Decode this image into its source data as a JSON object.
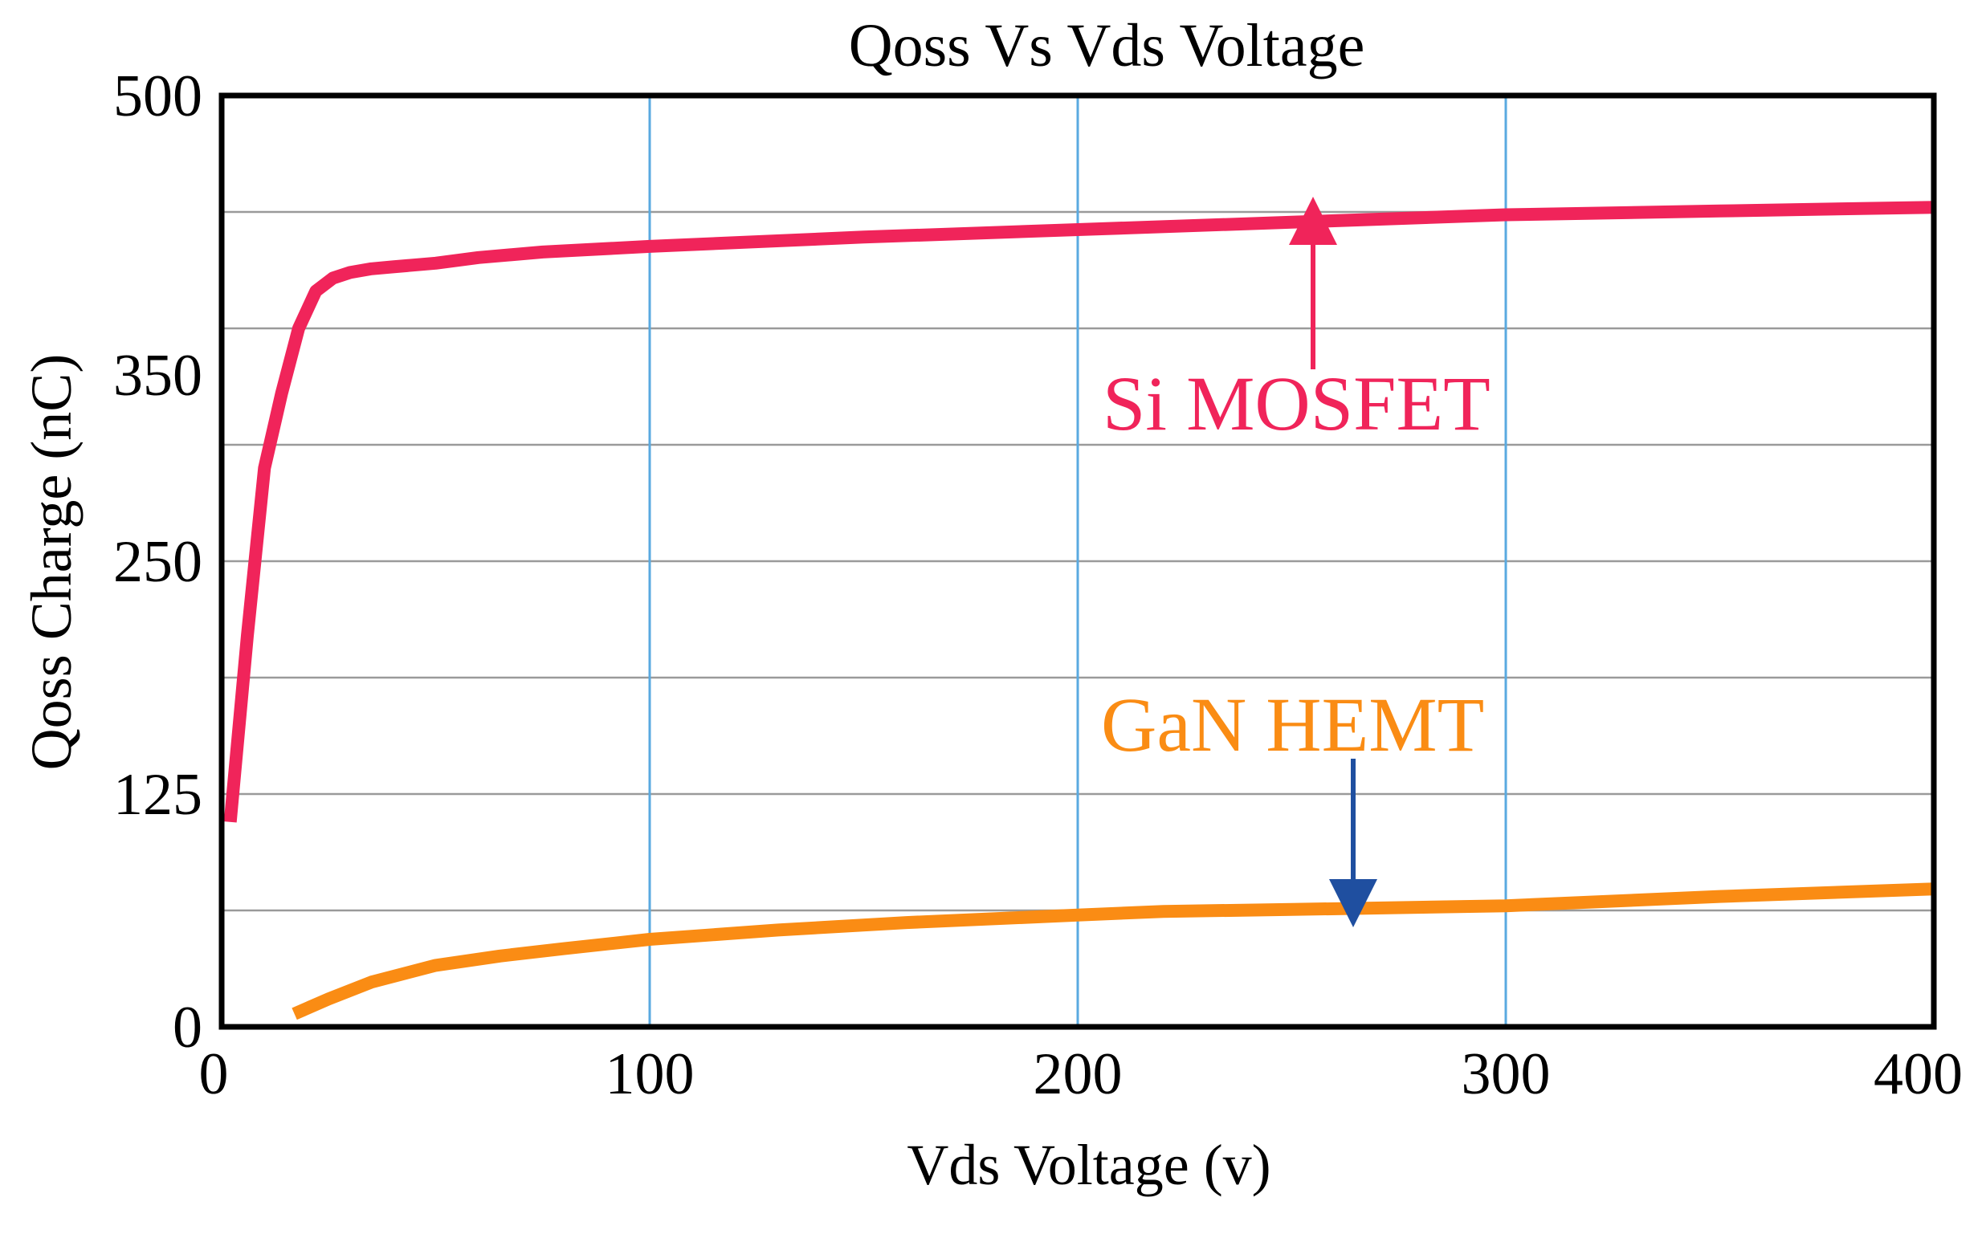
{
  "chart_data": {
    "type": "line",
    "title": "Qoss Vs Vds Voltage",
    "xlabel": "Vds Voltage (v)",
    "ylabel": "Qoss Charge (nC)",
    "xlim": [
      0,
      400
    ],
    "ylim": [
      0,
      500
    ],
    "xticks": [
      0,
      100,
      200,
      300,
      400
    ],
    "yticks": [
      0,
      125,
      250,
      350,
      500
    ],
    "grid": true,
    "series": [
      {
        "name": "Si MOSFET",
        "color": "#f0245a",
        "x": [
          2,
          6,
          10,
          14,
          18,
          22,
          26,
          30,
          35,
          40,
          50,
          60,
          75,
          100,
          150,
          200,
          250,
          300,
          350,
          400
        ],
        "y": [
          110,
          210,
          300,
          340,
          375,
          395,
          402,
          405,
          407,
          408,
          410,
          413,
          416,
          419,
          424,
          428,
          432,
          436,
          438,
          440
        ]
      },
      {
        "name": "GaN HEMT",
        "color": "#fa8c14",
        "x": [
          17,
          25,
          35,
          50,
          65,
          80,
          100,
          130,
          160,
          200,
          220,
          250,
          300,
          350,
          400
        ],
        "y": [
          7,
          15,
          24,
          33,
          38,
          42,
          47,
          52,
          56,
          60,
          62,
          63,
          65,
          70,
          74
        ]
      }
    ],
    "annotations": [
      {
        "text": "Si MOSFET",
        "color": "#f0245a",
        "arrow_color": "#f0245a"
      },
      {
        "text": "GaN HEMT",
        "color": "#fa8c14",
        "arrow_color": "#1f4fa0"
      }
    ]
  }
}
